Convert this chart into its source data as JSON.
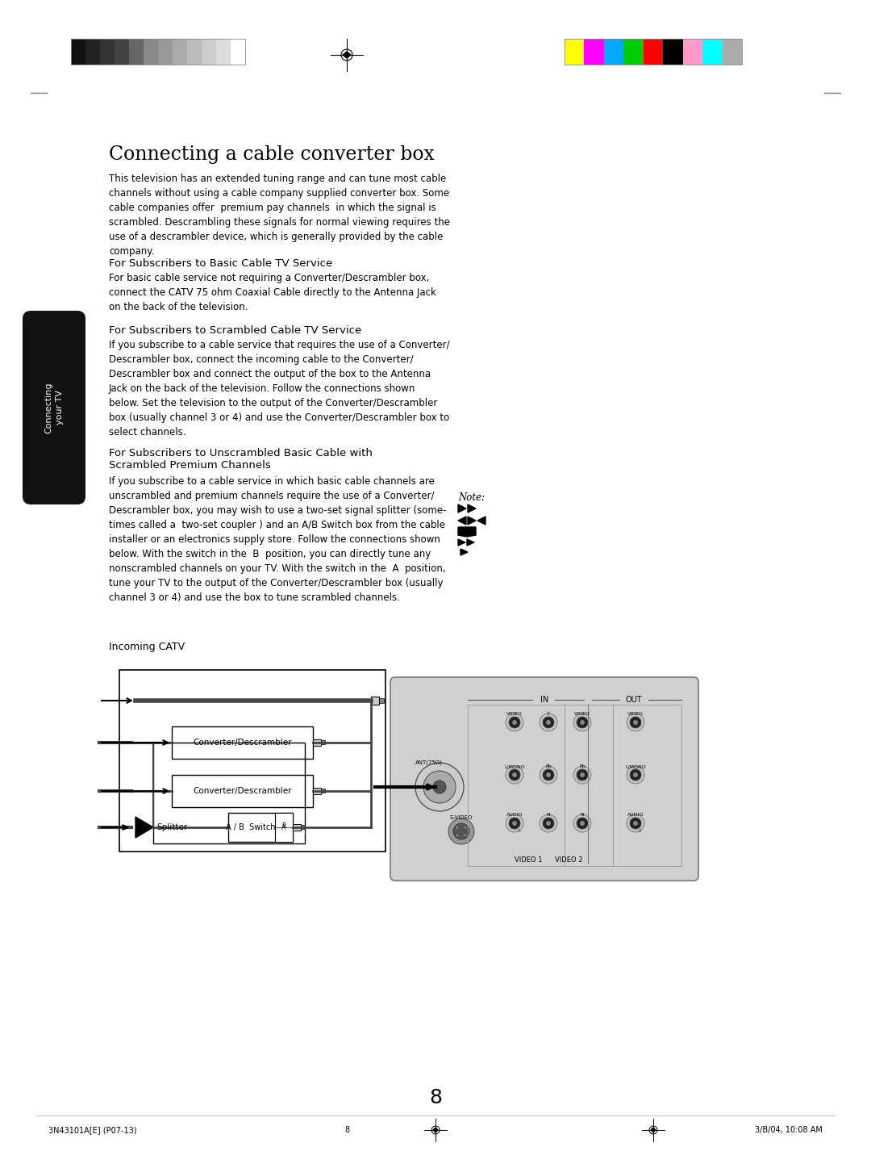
{
  "title": "Connecting a cable converter box",
  "page_number": "8",
  "footer_left": "3N43101A[E] (P07-13)",
  "footer_center": "8",
  "footer_right": "3/B/04, 10:08 AM",
  "sidebar_text": "Connecting\nyour TV",
  "section1_title": "For Subscribers to Basic Cable TV Service",
  "section1_body": "For basic cable service not requiring a Converter/Descrambler box,\nconnect the CATV 75 ohm Coaxial Cable directly to the Antenna Jack\non the back of the television.",
  "section2_title": "For Subscribers to Scrambled Cable TV Service",
  "section2_body": "If you subscribe to a cable service that requires the use of a Converter/\nDescrambler box, connect the incoming cable to the Converter/\nDescrambler box and connect the output of the box to the Antenna\nJack on the back of the television. Follow the connections shown\nbelow. Set the television to the output of the Converter/Descrambler\nbox (usually channel 3 or 4) and use the Converter/Descrambler box to\nselect channels.",
  "section3_title": "For Subscribers to Unscrambled Basic Cable with\nScrambled Premium Channels",
  "section3_body": "If you subscribe to a cable service in which basic cable channels are\nunscrambled and premium channels require the use of a Converter/\nDescrambler box, you may wish to use a two-set signal splitter (some-\ntimes called a  two-set coupler ) and an A/B Switch box from the cable\ninstaller or an electronics supply store. Follow the connections shown\nbelow. With the switch in the  B  position, you can directly tune any\nnonscrambled channels on your TV. With the switch in the  A  position,\ntune your TV to the output of the Converter/Descrambler box (usually\nchannel 3 or 4) and use the box to tune scrambled channels.",
  "intro_body": "This television has an extended tuning range and can tune most cable\nchannels without using a cable company supplied converter box. Some\ncable companies offer  premium pay channels  in which the signal is\nscrambled. Descrambling these signals for normal viewing requires the\nuse of a descrambler device, which is generally provided by the cable\ncompany.",
  "note_label": "Note:",
  "diagram_label": "Incoming CATV",
  "bg_color": "#ffffff",
  "text_color": "#000000",
  "sidebar_bg": "#111111",
  "sidebar_text_color": "#ffffff",
  "gray_bar_colors_left": [
    "#111111",
    "#222222",
    "#333333",
    "#444444",
    "#666666",
    "#888888",
    "#999999",
    "#aaaaaa",
    "#bbbbbb",
    "#cccccc",
    "#dddddd",
    "#ffffff"
  ],
  "color_bar_colors": [
    "#ffff00",
    "#ff00ff",
    "#00aaff",
    "#00cc00",
    "#ff0000",
    "#000000",
    "#ff99cc",
    "#00ffff",
    "#aaaaaa"
  ],
  "diagram_box_color": "#cccccc",
  "connector_color": "#888888"
}
